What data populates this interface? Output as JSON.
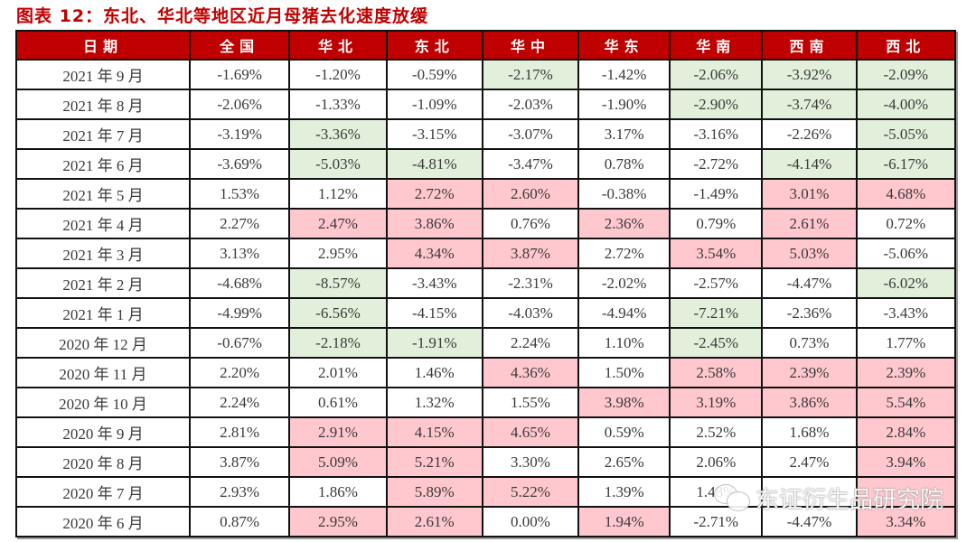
{
  "title": "图表 12：东北、华北等地区近月母猪去化速度放缓",
  "table": {
    "headers": [
      "日期",
      "全国",
      "华北",
      "东北",
      "华中",
      "华东",
      "华南",
      "西南",
      "西北"
    ],
    "rows": [
      {
        "date": "2021 年 9 月",
        "values": [
          "-1.69%",
          "-1.20%",
          "-0.59%",
          "-2.17%",
          "-1.42%",
          "-2.06%",
          "-3.92%",
          "-2.09%"
        ],
        "fill": [
          "",
          "",
          "",
          "g",
          "",
          "g",
          "g",
          "g"
        ]
      },
      {
        "date": "2021 年 8 月",
        "values": [
          "-2.06%",
          "-1.33%",
          "-1.09%",
          "-2.03%",
          "-1.90%",
          "-2.90%",
          "-3.74%",
          "-4.00%"
        ],
        "fill": [
          "",
          "",
          "",
          "",
          "",
          "g",
          "g",
          "g"
        ]
      },
      {
        "date": "2021 年 7 月",
        "values": [
          "-3.19%",
          "-3.36%",
          "-3.15%",
          "-3.07%",
          "3.17%",
          "-3.16%",
          "-2.26%",
          "-5.05%"
        ],
        "fill": [
          "",
          "g",
          "",
          "",
          "",
          "",
          "",
          "g"
        ]
      },
      {
        "date": "2021 年 6 月",
        "values": [
          "-3.69%",
          "-5.03%",
          "-4.81%",
          "-3.47%",
          "0.78%",
          "-2.72%",
          "-4.14%",
          "-6.17%"
        ],
        "fill": [
          "",
          "g",
          "g",
          "",
          "",
          "",
          "g",
          "g"
        ]
      },
      {
        "date": "2021 年 5 月",
        "values": [
          "1.53%",
          "1.12%",
          "2.72%",
          "2.60%",
          "-0.38%",
          "-1.49%",
          "3.01%",
          "4.68%"
        ],
        "fill": [
          "",
          "",
          "r",
          "r",
          "",
          "",
          "r",
          "r"
        ]
      },
      {
        "date": "2021 年 4 月",
        "values": [
          "2.27%",
          "2.47%",
          "3.86%",
          "0.76%",
          "2.36%",
          "0.79%",
          "2.61%",
          "0.72%"
        ],
        "fill": [
          "",
          "r",
          "r",
          "",
          "r",
          "",
          "r",
          ""
        ]
      },
      {
        "date": "2021 年 3 月",
        "values": [
          "3.13%",
          "2.95%",
          "4.34%",
          "3.87%",
          "2.72%",
          "3.54%",
          "5.03%",
          "-5.06%"
        ],
        "fill": [
          "",
          "",
          "r",
          "r",
          "",
          "r",
          "r",
          ""
        ]
      },
      {
        "date": "2021 年 2 月",
        "values": [
          "-4.68%",
          "-8.57%",
          "-3.43%",
          "-2.31%",
          "-2.02%",
          "-2.57%",
          "-4.47%",
          "-6.02%"
        ],
        "fill": [
          "",
          "g",
          "",
          "",
          "",
          "",
          "",
          "g"
        ]
      },
      {
        "date": "2021 年 1 月",
        "values": [
          "-4.99%",
          "-6.56%",
          "-4.15%",
          "-4.03%",
          "-4.94%",
          "-7.21%",
          "-2.36%",
          "-3.43%"
        ],
        "fill": [
          "",
          "g",
          "",
          "",
          "",
          "g",
          "",
          ""
        ]
      },
      {
        "date": "2020 年 12 月",
        "values": [
          "-0.67%",
          "-2.18%",
          "-1.91%",
          "2.24%",
          "1.10%",
          "-2.45%",
          "0.73%",
          "1.77%"
        ],
        "fill": [
          "",
          "g",
          "g",
          "",
          "",
          "g",
          "",
          ""
        ]
      },
      {
        "date": "2020 年 11 月",
        "values": [
          "2.20%",
          "2.01%",
          "1.46%",
          "4.36%",
          "1.50%",
          "2.58%",
          "2.39%",
          "2.39%"
        ],
        "fill": [
          "",
          "",
          "",
          "r",
          "",
          "r",
          "r",
          "r"
        ]
      },
      {
        "date": "2020 年 10 月",
        "values": [
          "2.24%",
          "0.61%",
          "1.32%",
          "1.55%",
          "3.98%",
          "3.19%",
          "3.86%",
          "5.54%"
        ],
        "fill": [
          "",
          "",
          "",
          "",
          "r",
          "r",
          "r",
          "r"
        ]
      },
      {
        "date": "2020 年 9 月",
        "values": [
          "2.81%",
          "2.91%",
          "4.15%",
          "4.65%",
          "0.59%",
          "2.52%",
          "1.68%",
          "2.84%"
        ],
        "fill": [
          "",
          "r",
          "r",
          "r",
          "",
          "",
          "",
          "r"
        ]
      },
      {
        "date": "2020 年 8 月",
        "values": [
          "3.87%",
          "5.09%",
          "5.21%",
          "3.30%",
          "2.65%",
          "2.06%",
          "2.47%",
          "3.94%"
        ],
        "fill": [
          "",
          "r",
          "r",
          "",
          "",
          "",
          "",
          "r"
        ]
      },
      {
        "date": "2020 年 7 月",
        "values": [
          "2.93%",
          "1.86%",
          "5.89%",
          "5.22%",
          "1.39%",
          "1.48%",
          "",
          ""
        ],
        "fill": [
          "",
          "",
          "r",
          "r",
          "",
          "",
          "",
          "r"
        ]
      },
      {
        "date": "2020 年 6 月",
        "values": [
          "0.87%",
          "2.95%",
          "2.61%",
          "0.00%",
          "1.94%",
          "-2.71%",
          "-4.47%",
          "3.34%"
        ],
        "fill": [
          "",
          "r",
          "r",
          "",
          "r",
          "",
          "",
          "r"
        ]
      }
    ]
  },
  "watermark": {
    "text": "东证衍生品研究院",
    "icon": "wechat-icon"
  },
  "colors": {
    "header_bg": "#c00000",
    "title": "#c00000",
    "negative_fill": "#e2efda",
    "positive_fill": "#ffc7ce"
  }
}
